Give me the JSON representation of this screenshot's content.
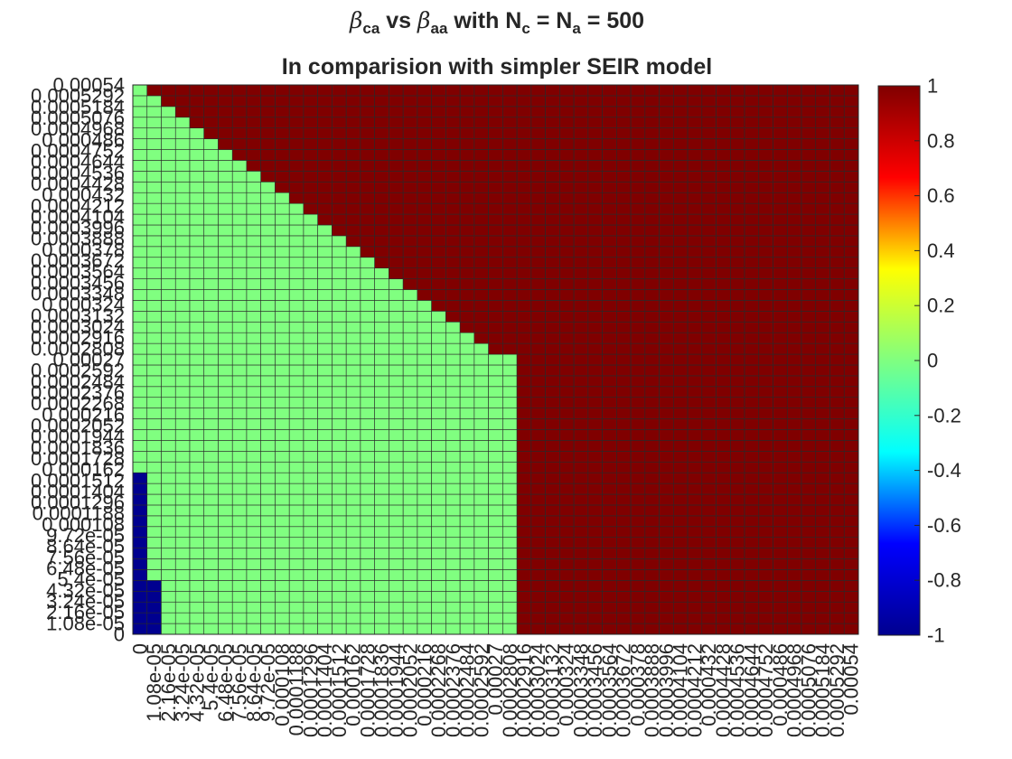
{
  "chart_data": {
    "type": "heatmap",
    "title_parts": [
      "β",
      "ca",
      " vs ",
      "β",
      "aa",
      " with N",
      "c",
      " = N",
      "a",
      " = 500"
    ],
    "subtitle": "In comparision with simpler SEIR model",
    "xlabel": "",
    "ylabel": "",
    "x_values": [
      0,
      1.08e-05,
      2.16e-05,
      3.24e-05,
      4.32e-05,
      5.4e-05,
      6.48e-05,
      7.56e-05,
      8.64e-05,
      9.72e-05,
      0.000108,
      0.0001188,
      0.0001296,
      0.0001404,
      0.0001512,
      0.000162,
      0.0001728,
      0.0001836,
      0.0001944,
      0.0002052,
      0.000216,
      0.0002268,
      0.0002376,
      0.0002484,
      0.0002592,
      0.00027,
      0.0002808,
      0.0002916,
      0.0003024,
      0.0003132,
      0.000324,
      0.0003348,
      0.0003456,
      0.0003564,
      0.0003672,
      0.000378,
      0.0003888,
      0.0003996,
      0.0004104,
      0.0004212,
      0.000432,
      0.0004428,
      0.0004536,
      0.0004644,
      0.0004752,
      0.000486,
      0.0004968,
      0.0005076,
      0.0005184,
      0.0005292,
      0.00054
    ],
    "y_values": [
      0,
      1.08e-05,
      2.16e-05,
      3.24e-05,
      4.32e-05,
      5.4e-05,
      6.48e-05,
      7.56e-05,
      8.64e-05,
      9.72e-05,
      0.000108,
      0.0001188,
      0.0001296,
      0.0001404,
      0.0001512,
      0.000162,
      0.0001728,
      0.0001836,
      0.0001944,
      0.0002052,
      0.000216,
      0.0002268,
      0.0002376,
      0.0002484,
      0.0002592,
      0.00027,
      0.0002808,
      0.0002916,
      0.0003024,
      0.0003132,
      0.000324,
      0.0003348,
      0.0003456,
      0.0003564,
      0.0003672,
      0.000378,
      0.0003888,
      0.0003996,
      0.0004104,
      0.0004212,
      0.000432,
      0.0004428,
      0.0004536,
      0.0004644,
      0.0004752,
      0.000486,
      0.0004968,
      0.0005076,
      0.0005184,
      0.0005292,
      0.00054
    ],
    "x_tick_labels": [
      "0",
      "1.08e-05",
      "2.16e-05",
      "3.24e-05",
      "4.32e-05",
      "5.4e-05",
      "6.48e-05",
      "7.56e-05",
      "8.64e-05",
      "9.72e-05",
      "0.000108",
      "0.0001188",
      "0.0001296",
      "0.0001404",
      "0.0001512",
      "0.000162",
      "0.0001728",
      "0.0001836",
      "0.0001944",
      "0.0002052",
      "0.000216",
      "0.0002268",
      "0.0002376",
      "0.0002484",
      "0.0002592",
      "0.00027",
      "0.0002808",
      "0.0002916",
      "0.0003024",
      "0.0003132",
      "0.000324",
      "0.0003348",
      "0.0003456",
      "0.0003564",
      "0.0003672",
      "0.000378",
      "0.0003888",
      "0.0003996",
      "0.0004104",
      "0.0004212",
      "0.000432",
      "0.0004428",
      "0.0004536",
      "0.0004644",
      "0.0004752",
      "0.000486",
      "0.0004968",
      "0.0005076",
      "0.0005184",
      "0.0005292",
      "0.00054"
    ],
    "y_tick_labels": [
      "0",
      "1.08e-05",
      "2.16e-05",
      "3.24e-05",
      "4.32e-05",
      "5.4e-05",
      "6.48e-05",
      "7.56e-05",
      "8.64e-05",
      "9.72e-05",
      "0.000108",
      "0.0001188",
      "0.0001296",
      "0.0001404",
      "0.0001512",
      "0.000162",
      "0.0001728",
      "0.0001836",
      "0.0001944",
      "0.0002052",
      "0.000216",
      "0.0002268",
      "0.0002376",
      "0.0002484",
      "0.0002592",
      "0.00027",
      "0.0002808",
      "0.0002916",
      "0.0003024",
      "0.0003132",
      "0.000324",
      "0.0003348",
      "0.0003456",
      "0.0003564",
      "0.0003672",
      "0.000378",
      "0.0003888",
      "0.0003996",
      "0.0004104",
      "0.0004212",
      "0.000432",
      "0.0004428",
      "0.0004536",
      "0.0004644",
      "0.0004752",
      "0.000486",
      "0.0004968",
      "0.0005076",
      "0.0005184",
      "0.0005292",
      "0.00054"
    ],
    "value_regions": [
      {
        "value": -1,
        "rule": "x_index <= 1 and y_index <= 4"
      },
      {
        "value": -1,
        "rule": "x_index == 0 and 5 <= y_index <= 14"
      },
      {
        "value": 1,
        "rule": "x_index >= 27"
      },
      {
        "value": 1,
        "rule": "y_index >= 26 and x_index >= 51 - y_index"
      },
      {
        "value": 0,
        "rule": "all other cells"
      }
    ],
    "colormap": "jet",
    "colormap_stops": [
      "#00008f",
      "#0000ff",
      "#00ffff",
      "#80ff80",
      "#ffff00",
      "#ff0000",
      "#800000"
    ],
    "clim": [
      -1,
      1
    ],
    "colorbar_ticks": [
      "-1",
      "-0.8",
      "-0.6",
      "-0.4",
      "-0.2",
      "0",
      "0.2",
      "0.4",
      "0.6",
      "0.8",
      "1"
    ],
    "grid": true,
    "grid_color": "#2a2a2a"
  }
}
